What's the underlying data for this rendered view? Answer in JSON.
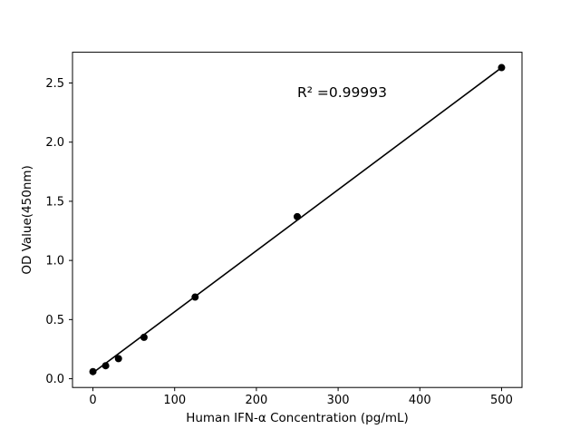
{
  "figure": {
    "background": "#ffffff"
  },
  "chart_data": {
    "type": "scatter",
    "title": "",
    "xlabel": "Human IFN-α Concentration (pg/mL)",
    "ylabel": "OD Value(450nm)",
    "x": [
      0,
      15.6,
      31.25,
      62.5,
      125,
      250,
      500
    ],
    "y": [
      0.06,
      0.11,
      0.17,
      0.35,
      0.69,
      1.37,
      2.63
    ],
    "fit_line": {
      "x1": 0,
      "y1": 0.05,
      "x2": 500,
      "y2": 2.63
    },
    "annotation": {
      "text": "R² =0.99993",
      "x": 250,
      "y": 2.38
    },
    "xticks": [
      0,
      100,
      200,
      300,
      400,
      500
    ],
    "yticks": [
      0.0,
      0.5,
      1.0,
      1.5,
      2.0,
      2.5
    ],
    "xlim": [
      -25,
      525
    ],
    "ylim": [
      -0.074,
      2.76
    ],
    "marker_color": "#000000",
    "line_color": "#000000",
    "grid": false,
    "legend_position": "none"
  }
}
